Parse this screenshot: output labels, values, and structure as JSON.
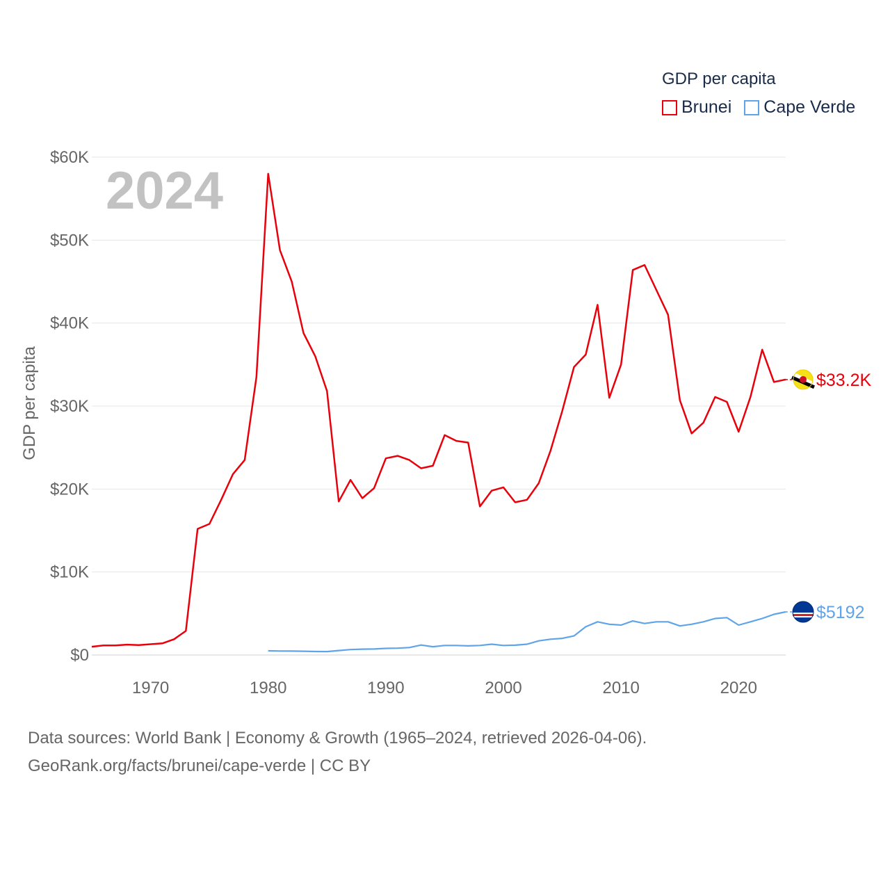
{
  "chart_data": {
    "type": "line",
    "title": "GDP per capita",
    "ylabel": "GDP per capita",
    "xlabel": "",
    "year_label": "2024",
    "xlim": [
      1965,
      2024
    ],
    "ylim": [
      0,
      60000
    ],
    "x_ticks": [
      1970,
      1980,
      1990,
      2000,
      2010,
      2020
    ],
    "x_tick_labels": [
      "1970",
      "1980",
      "1990",
      "2000",
      "2010",
      "2020"
    ],
    "y_ticks": [
      0,
      10000,
      20000,
      30000,
      40000,
      50000,
      60000
    ],
    "y_tick_labels": [
      "$0",
      "$10K",
      "$20K",
      "$30K",
      "$40K",
      "$50K",
      "$60K"
    ],
    "legend_position": "top-right",
    "series": [
      {
        "name": "Brunei",
        "color": "#e8000b",
        "end_label": "$33.2K",
        "flag": "brunei-flag",
        "x": [
          1965,
          1966,
          1967,
          1968,
          1969,
          1970,
          1971,
          1972,
          1973,
          1974,
          1975,
          1976,
          1977,
          1978,
          1979,
          1980,
          1981,
          1982,
          1983,
          1984,
          1985,
          1986,
          1987,
          1988,
          1989,
          1990,
          1991,
          1992,
          1993,
          1994,
          1995,
          1996,
          1997,
          1998,
          1999,
          2000,
          2001,
          2002,
          2003,
          2004,
          2005,
          2006,
          2007,
          2008,
          2009,
          2010,
          2011,
          2012,
          2013,
          2014,
          2015,
          2016,
          2017,
          2018,
          2019,
          2020,
          2021,
          2022,
          2023,
          2024
        ],
        "values": [
          1000,
          1150,
          1150,
          1250,
          1200,
          1300,
          1400,
          1900,
          2900,
          15200,
          15800,
          18700,
          21800,
          23500,
          33500,
          58000,
          48800,
          45000,
          38800,
          36000,
          31800,
          18500,
          21100,
          18900,
          20100,
          23700,
          24000,
          23500,
          22500,
          22800,
          26500,
          25800,
          25600,
          17900,
          19800,
          20200,
          18400,
          18700,
          20700,
          24600,
          29400,
          34700,
          36200,
          42200,
          31000,
          35000,
          46400,
          47000,
          44000,
          41000,
          30700,
          26700,
          28000,
          31100,
          30500,
          26900,
          31100,
          36800,
          32900,
          33200
        ]
      },
      {
        "name": "Cape Verde",
        "color": "#5fa4e8",
        "end_label": "$5192",
        "flag": "cape-verde-flag",
        "x": [
          1980,
          1981,
          1982,
          1983,
          1984,
          1985,
          1986,
          1987,
          1988,
          1989,
          1990,
          1991,
          1992,
          1993,
          1994,
          1995,
          1996,
          1997,
          1998,
          1999,
          2000,
          2001,
          2002,
          2003,
          2004,
          2005,
          2006,
          2007,
          2008,
          2009,
          2010,
          2011,
          2012,
          2013,
          2014,
          2015,
          2016,
          2017,
          2018,
          2019,
          2020,
          2021,
          2022,
          2023,
          2024
        ],
        "values": [
          500,
          480,
          470,
          450,
          420,
          410,
          540,
          650,
          700,
          720,
          800,
          820,
          900,
          1200,
          1000,
          1150,
          1150,
          1100,
          1150,
          1300,
          1150,
          1180,
          1300,
          1700,
          1900,
          2000,
          2300,
          3400,
          4000,
          3700,
          3600,
          4100,
          3800,
          4000,
          4000,
          3500,
          3700,
          4000,
          4400,
          4500,
          3600,
          4000,
          4400,
          4900,
          5192
        ]
      }
    ]
  },
  "legend": {
    "title": "GDP per capita",
    "items": [
      {
        "label": "Brunei",
        "color": "#e8000b"
      },
      {
        "label": "Cape Verde",
        "color": "#5fa4e8"
      }
    ]
  },
  "source": {
    "line1": "Data sources: World Bank | Economy & Growth (1965–2024, retrieved 2026-04-06).",
    "line2": "GeoRank.org/facts/brunei/cape-verde | CC BY"
  }
}
